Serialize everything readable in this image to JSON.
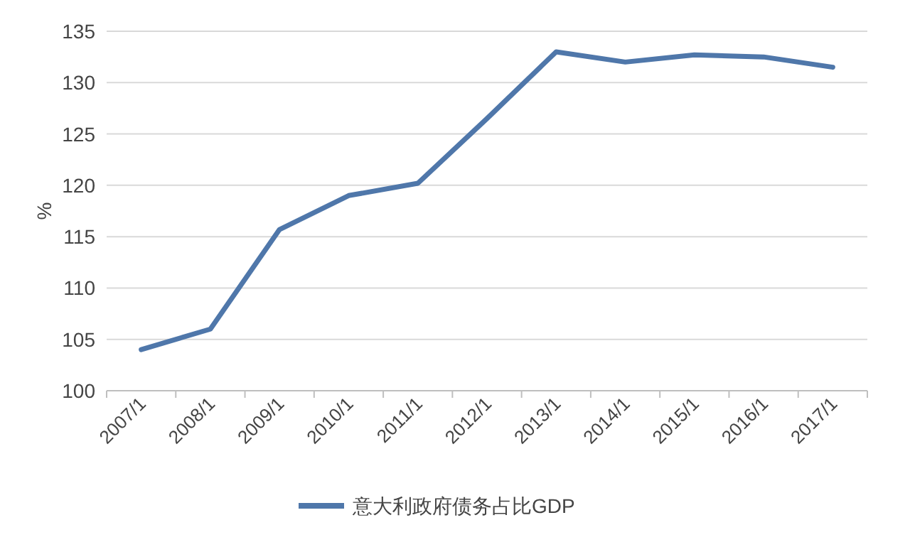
{
  "chart_data": {
    "type": "line",
    "ylabel": "%",
    "categories": [
      "2007/1",
      "2008/1",
      "2009/1",
      "2010/1",
      "2011/1",
      "2012/1",
      "2013/1",
      "2014/1",
      "2015/1",
      "2016/1",
      "2017/1"
    ],
    "series": [
      {
        "name": "意大利政府债务占比GDP",
        "color": "#4f77aa",
        "values": [
          104,
          106,
          115.7,
          119,
          120.2,
          126.5,
          133,
          132,
          132.7,
          132.5,
          131.5
        ]
      }
    ],
    "ylim": [
      100,
      135
    ],
    "yticks": [
      100,
      105,
      110,
      115,
      120,
      125,
      130,
      135
    ],
    "grid": "y",
    "legend": "bottom",
    "marker": "none",
    "line_style": "solid"
  }
}
